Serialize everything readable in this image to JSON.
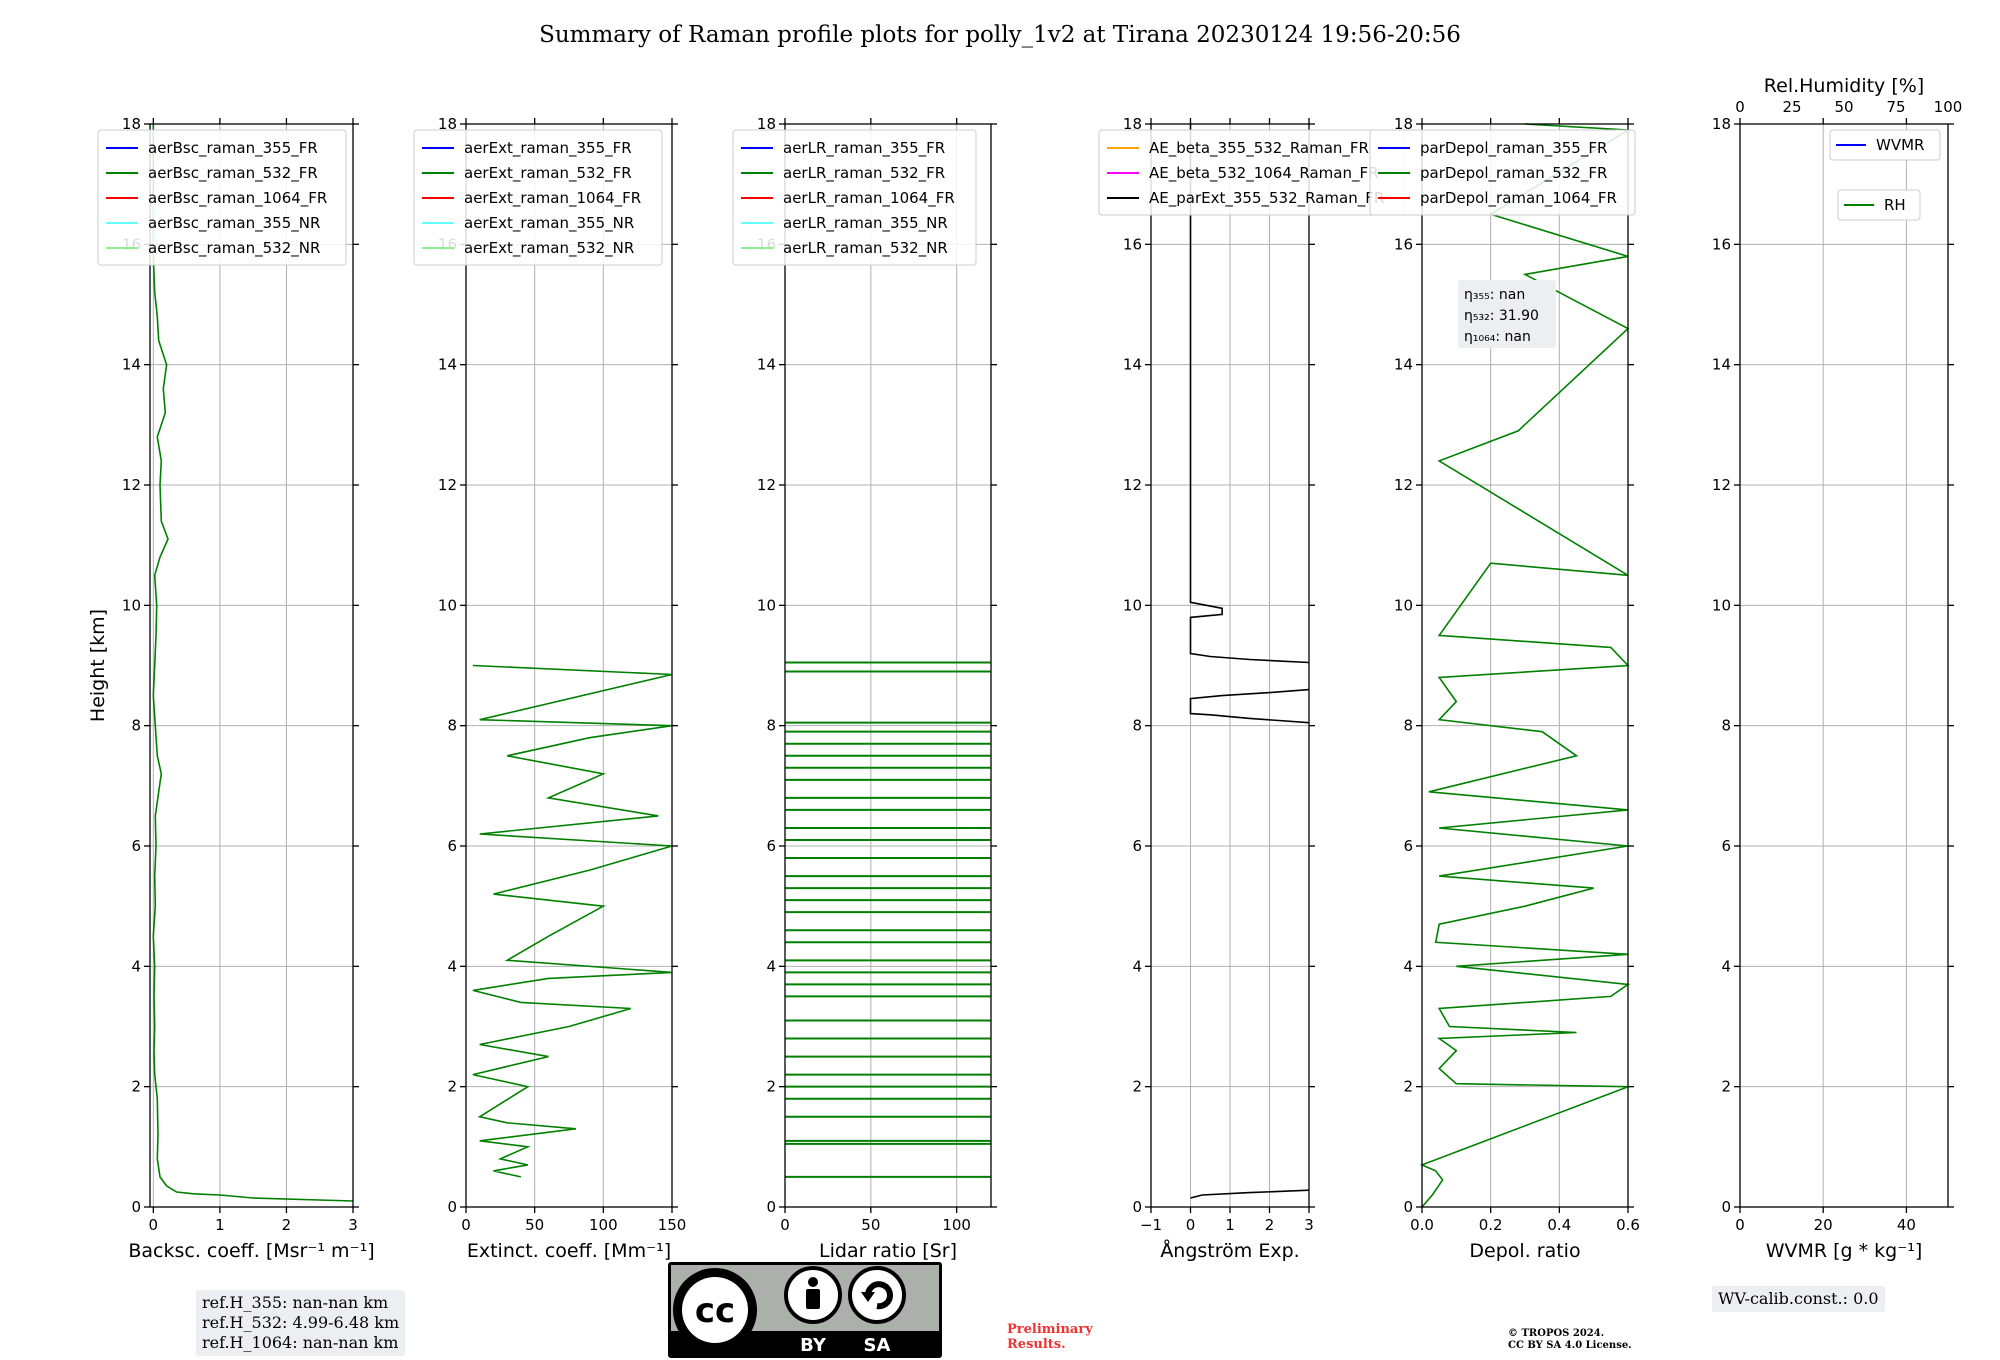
{
  "title": "Summary of Raman profile plots for polly_1v2 at Tirana 20230124 19:56-20:56",
  "colors": {
    "blue": "#0000ff",
    "green": "#008000",
    "red": "#ff0000",
    "cyan": "#66ffff",
    "lightgreen": "#90ee90",
    "orange": "#ffa500",
    "magenta": "#ff00ff",
    "black": "#000000"
  },
  "chart_data": [
    {
      "type": "line",
      "xlabel": "Backsc. coeff. [Msr⁻¹ m⁻¹]",
      "ylabel": "Height [km]",
      "xlim": [
        -0.05,
        3
      ],
      "ylim": [
        0,
        18
      ],
      "xticks": [
        "0",
        "1",
        "2",
        "3"
      ],
      "yticks": [
        "0",
        "2",
        "4",
        "6",
        "8",
        "10",
        "12",
        "14",
        "16",
        "18"
      ],
      "grid": true,
      "legend_position": "top-left",
      "series": [
        {
          "name": "aerBsc_raman_355_FR",
          "color": "blue",
          "points": []
        },
        {
          "name": "aerBsc_raman_532_FR",
          "color": "green",
          "points": [
            [
              3.0,
              0.1
            ],
            [
              1.5,
              0.15
            ],
            [
              1.0,
              0.2
            ],
            [
              0.6,
              0.22
            ],
            [
              0.35,
              0.25
            ],
            [
              0.2,
              0.35
            ],
            [
              0.1,
              0.5
            ],
            [
              0.06,
              0.8
            ],
            [
              0.07,
              1.2
            ],
            [
              0.06,
              1.8
            ],
            [
              0.02,
              2.2
            ],
            [
              0.01,
              2.6
            ],
            [
              0.02,
              3.0
            ],
            [
              0.01,
              3.5
            ],
            [
              0.02,
              4.0
            ],
            [
              0.0,
              4.5
            ],
            [
              0.03,
              5.0
            ],
            [
              0.02,
              5.5
            ],
            [
              0.04,
              6.0
            ],
            [
              0.03,
              6.5
            ],
            [
              0.08,
              6.9
            ],
            [
              0.12,
              7.2
            ],
            [
              0.06,
              7.5
            ],
            [
              0.03,
              8.0
            ],
            [
              0.0,
              8.5
            ],
            [
              0.02,
              9.0
            ],
            [
              0.04,
              9.5
            ],
            [
              0.05,
              10.0
            ],
            [
              0.02,
              10.5
            ],
            [
              0.1,
              10.8
            ],
            [
              0.22,
              11.1
            ],
            [
              0.12,
              11.4
            ],
            [
              0.1,
              12.0
            ],
            [
              0.12,
              12.4
            ],
            [
              0.06,
              12.8
            ],
            [
              0.18,
              13.2
            ],
            [
              0.15,
              13.6
            ],
            [
              0.2,
              14.0
            ],
            [
              0.08,
              14.4
            ],
            [
              0.06,
              14.8
            ],
            [
              0.02,
              15.2
            ],
            [
              0.0,
              15.8
            ],
            [
              0.0,
              16.5
            ],
            [
              0.0,
              17.2
            ],
            [
              0.0,
              18.0
            ]
          ]
        },
        {
          "name": "aerBsc_raman_1064_FR",
          "color": "red",
          "points": []
        },
        {
          "name": "aerBsc_raman_355_NR",
          "color": "cyan",
          "points": []
        },
        {
          "name": "aerBsc_raman_532_NR",
          "color": "lightgreen",
          "points": [
            [
              0.0,
              15.9
            ],
            [
              0.02,
              16.3
            ],
            [
              0.0,
              16.8
            ]
          ]
        }
      ]
    },
    {
      "type": "line",
      "xlabel": "Extinct. coeff. [Mm⁻¹]",
      "xlim": [
        0,
        150
      ],
      "ylim": [
        0,
        18
      ],
      "xticks": [
        "0",
        "50",
        "100",
        "150"
      ],
      "yticks": [
        "0",
        "2",
        "4",
        "6",
        "8",
        "10",
        "12",
        "14",
        "16",
        "18"
      ],
      "grid": true,
      "legend_position": "top-left",
      "series": [
        {
          "name": "aerExt_raman_355_FR",
          "color": "blue",
          "points": []
        },
        {
          "name": "aerExt_raman_532_FR",
          "color": "green",
          "points": [
            [
              40,
              0.5
            ],
            [
              20,
              0.6
            ],
            [
              45,
              0.7
            ],
            [
              25,
              0.8
            ],
            [
              35,
              0.9
            ],
            [
              45,
              1.0
            ],
            [
              10,
              1.1
            ],
            [
              80,
              1.3
            ],
            [
              30,
              1.4
            ],
            [
              10,
              1.5
            ],
            [
              45,
              2.0
            ],
            [
              5,
              2.2
            ],
            [
              60,
              2.5
            ],
            [
              10,
              2.7
            ],
            [
              75,
              3.0
            ],
            [
              120,
              3.3
            ],
            [
              40,
              3.4
            ],
            [
              5,
              3.6
            ],
            [
              60,
              3.8
            ],
            [
              150,
              3.9
            ],
            [
              30,
              4.1
            ],
            [
              60,
              4.5
            ],
            [
              100,
              5.0
            ],
            [
              20,
              5.2
            ],
            [
              90,
              5.6
            ],
            [
              150,
              6.0
            ],
            [
              10,
              6.2
            ],
            [
              140,
              6.5
            ],
            [
              60,
              6.8
            ],
            [
              100,
              7.2
            ],
            [
              30,
              7.5
            ],
            [
              90,
              7.8
            ],
            [
              150,
              8.0
            ],
            [
              10,
              8.1
            ],
            [
              150,
              8.85
            ],
            [
              5,
              9.0
            ]
          ]
        },
        {
          "name": "aerExt_raman_1064_FR",
          "color": "red",
          "points": []
        },
        {
          "name": "aerExt_raman_355_NR",
          "color": "cyan",
          "points": []
        },
        {
          "name": "aerExt_raman_532_NR",
          "color": "lightgreen",
          "points": []
        }
      ]
    },
    {
      "type": "line",
      "xlabel": "Lidar ratio [Sr]",
      "xlim": [
        0,
        120
      ],
      "ylim": [
        0,
        18
      ],
      "xticks": [
        "0",
        "50",
        "100"
      ],
      "yticks": [
        "0",
        "2",
        "4",
        "6",
        "8",
        "10",
        "12",
        "14",
        "16",
        "18"
      ],
      "grid": true,
      "legend_position": "top-left",
      "series": [
        {
          "name": "aerLR_raman_355_FR",
          "color": "blue",
          "points": []
        },
        {
          "name": "aerLR_raman_532_FR",
          "color": "green",
          "spikes_km": [
            0.5,
            1.05,
            1.1,
            1.5,
            1.8,
            2.0,
            2.2,
            2.5,
            2.8,
            3.1,
            3.5,
            3.7,
            3.9,
            4.1,
            4.4,
            4.6,
            4.9,
            5.1,
            5.3,
            5.5,
            5.8,
            6.1,
            6.3,
            6.6,
            6.8,
            7.1,
            7.3,
            7.5,
            7.7,
            7.9,
            8.05,
            8.9,
            9.05
          ],
          "spike_value": 120
        },
        {
          "name": "aerLR_raman_1064_FR",
          "color": "red",
          "points": []
        },
        {
          "name": "aerLR_raman_355_NR",
          "color": "cyan",
          "points": []
        },
        {
          "name": "aerLR_raman_532_NR",
          "color": "lightgreen",
          "points": []
        }
      ]
    },
    {
      "type": "line",
      "xlabel": "Ångström Exp.",
      "xlim": [
        -1,
        3
      ],
      "ylim": [
        0,
        18
      ],
      "xticks": [
        "−1",
        "0",
        "1",
        "2",
        "3"
      ],
      "yticks": [
        "0",
        "2",
        "4",
        "6",
        "8",
        "10",
        "12",
        "14",
        "16",
        "18"
      ],
      "grid": true,
      "legend_position": "top-left",
      "series": [
        {
          "name": "AE_beta_355_532_Raman_FR",
          "color": "orange",
          "points": []
        },
        {
          "name": "AE_beta_532_1064_Raman_FR",
          "color": "magenta",
          "points": []
        },
        {
          "name": "AE_parExt_355_532_Raman_FR",
          "color": "black",
          "points": [
            [
              0,
              0.15
            ],
            [
              0.3,
              0.2
            ],
            [
              1.5,
              0.24
            ],
            [
              3,
              0.28
            ],
            [
              null,
              null
            ],
            [
              3,
              8.05
            ],
            [
              1.5,
              8.12
            ],
            [
              0.5,
              8.18
            ],
            [
              0,
              8.2
            ],
            [
              0,
              8.45
            ],
            [
              0.8,
              8.5
            ],
            [
              2,
              8.55
            ],
            [
              3,
              8.6
            ],
            [
              null,
              null
            ],
            [
              3,
              9.05
            ],
            [
              1.5,
              9.1
            ],
            [
              0.5,
              9.15
            ],
            [
              0,
              9.2
            ],
            [
              0,
              9.8
            ],
            [
              0.8,
              9.85
            ],
            [
              0.8,
              9.95
            ],
            [
              0,
              10.05
            ],
            [
              0,
              18.0
            ]
          ]
        }
      ]
    },
    {
      "type": "line",
      "xlabel": "Depol. ratio",
      "xlim": [
        0,
        0.6
      ],
      "ylim": [
        0,
        18
      ],
      "xticks": [
        "0.0",
        "0.2",
        "0.4",
        "0.6"
      ],
      "yticks": [
        "0",
        "2",
        "4",
        "6",
        "8",
        "10",
        "12",
        "14",
        "16",
        "18"
      ],
      "grid": true,
      "legend_position": "top-left",
      "annotation": [
        "η₃₅₅: nan",
        "η₅₃₂: 31.90",
        "η₁₀₆₄: nan"
      ],
      "series": [
        {
          "name": "parDepol_raman_355_FR",
          "color": "blue",
          "points": []
        },
        {
          "name": "parDepol_raman_532_FR",
          "color": "green",
          "points": [
            [
              0.0,
              0.0
            ],
            [
              0.03,
              0.2
            ],
            [
              0.06,
              0.45
            ],
            [
              0.04,
              0.6
            ],
            [
              0.0,
              0.7
            ],
            [
              0.6,
              2.0
            ],
            [
              0.1,
              2.05
            ],
            [
              0.05,
              2.3
            ],
            [
              0.1,
              2.6
            ],
            [
              0.05,
              2.8
            ],
            [
              0.45,
              2.9
            ],
            [
              0.08,
              3.0
            ],
            [
              0.05,
              3.3
            ],
            [
              0.55,
              3.5
            ],
            [
              0.6,
              3.7
            ],
            [
              0.1,
              4.0
            ],
            [
              0.6,
              4.2
            ],
            [
              0.04,
              4.4
            ],
            [
              0.05,
              4.7
            ],
            [
              0.3,
              5.0
            ],
            [
              0.5,
              5.3
            ],
            [
              0.05,
              5.5
            ],
            [
              0.6,
              6.0
            ],
            [
              0.05,
              6.3
            ],
            [
              0.6,
              6.6
            ],
            [
              0.02,
              6.9
            ],
            [
              0.45,
              7.5
            ],
            [
              0.35,
              7.9
            ],
            [
              0.05,
              8.1
            ],
            [
              0.1,
              8.4
            ],
            [
              0.05,
              8.8
            ],
            [
              0.6,
              9.0
            ],
            [
              0.55,
              9.3
            ],
            [
              0.05,
              9.5
            ],
            [
              0.2,
              10.7
            ],
            [
              0.6,
              10.5
            ],
            [
              0.05,
              12.4
            ],
            [
              0.28,
              12.9
            ],
            [
              0.6,
              14.6
            ],
            [
              0.3,
              15.5
            ],
            [
              0.6,
              15.8
            ],
            [
              0.2,
              16.5
            ],
            [
              0.6,
              17.9
            ],
            [
              0.3,
              18.0
            ]
          ]
        },
        {
          "name": "parDepol_raman_1064_FR",
          "color": "red",
          "points": []
        }
      ]
    },
    {
      "type": "line",
      "xlabel": "WVMR [g * kg⁻¹]",
      "xlim": [
        0,
        50
      ],
      "ylim": [
        0,
        18
      ],
      "xticks": [
        "0",
        "20",
        "40"
      ],
      "yticks": [
        "0",
        "2",
        "4",
        "6",
        "8",
        "10",
        "12",
        "14",
        "16",
        "18"
      ],
      "top_xlabel": "Rel.Humidity [%]",
      "top_xlim": [
        0,
        100
      ],
      "top_xticks": [
        "0",
        "25",
        "50",
        "75",
        "100"
      ],
      "grid": true,
      "legend_position": "top-right",
      "series": [
        {
          "name": "WVMR",
          "color": "blue",
          "points": []
        },
        {
          "name": "RH",
          "color": "green",
          "points": []
        }
      ]
    }
  ],
  "notes": {
    "refH": [
      "ref.H_355: nan-nan km",
      "ref.H_532: 4.99-6.48 km",
      "ref.H_1064: nan-nan km"
    ],
    "wvcalib": "WV-calib.const.: 0.0",
    "prelim1": "Preliminary",
    "prelim2": "Results.",
    "copyright1": "© TROPOS 2024.",
    "copyright2": "CC BY SA 4.0 License.",
    "cc_by": "BY",
    "cc_sa": "SA",
    "cc_logo": "cc"
  }
}
